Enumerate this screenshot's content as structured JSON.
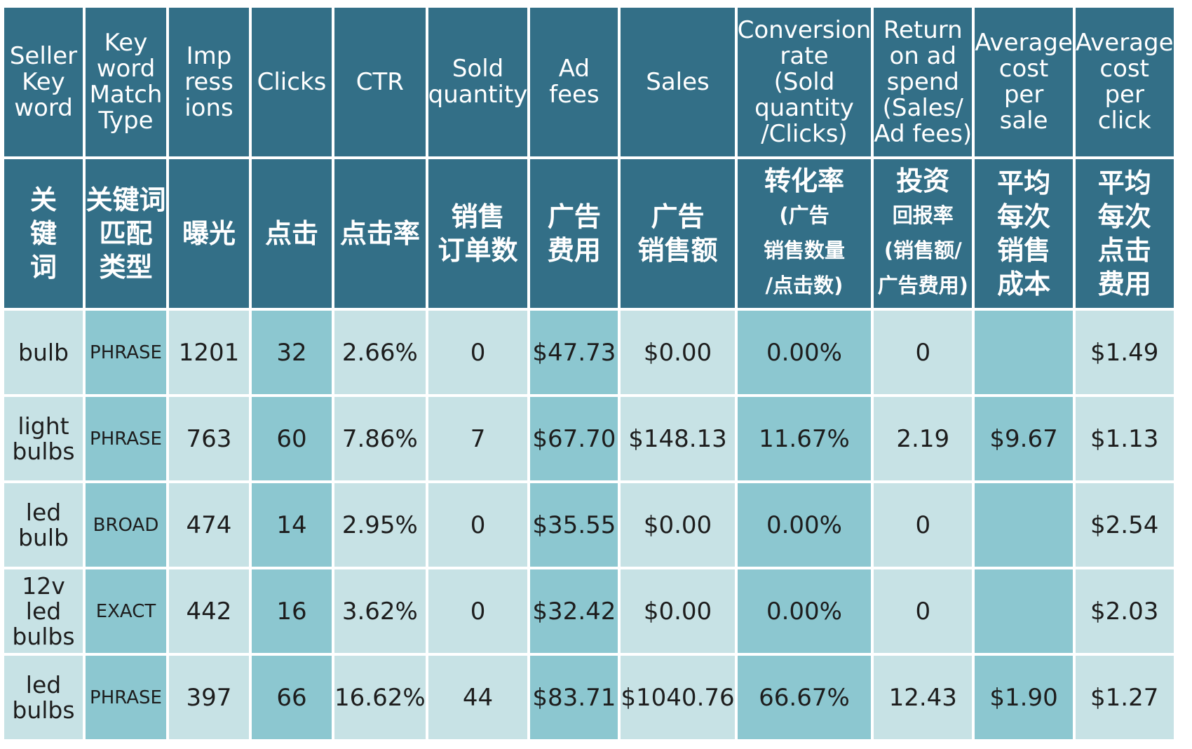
{
  "chart_data": {
    "type": "table",
    "columns": [
      {
        "key": "keyword",
        "en": "Seller\nKey\nword",
        "zh": "关\n键\n词",
        "tone": "light"
      },
      {
        "key": "match",
        "en": "Key\nword\nMatch\nType",
        "zh": "关键词\n匹配\n类型",
        "tone": "mid"
      },
      {
        "key": "impressions",
        "en": "Imp\nress\nions",
        "zh": "曝光",
        "tone": "light"
      },
      {
        "key": "clicks",
        "en": "Clicks",
        "zh": "点击",
        "tone": "mid"
      },
      {
        "key": "ctr",
        "en": "CTR",
        "zh": "点击率",
        "tone": "light"
      },
      {
        "key": "sold",
        "en": "Sold\nquantity",
        "zh": "销售\n订单数",
        "tone": "light"
      },
      {
        "key": "adfees",
        "en": "Ad fees",
        "zh": "广告\n费用",
        "tone": "mid"
      },
      {
        "key": "sales",
        "en": "Sales",
        "zh": "广告\n销售额",
        "tone": "light"
      },
      {
        "key": "conversion",
        "en": "Conversion\nrate\n(Sold\nquantity\n/Clicks)",
        "zh": "转化率\n(广告\n销售数量\n/点击数)",
        "tone": "mid"
      },
      {
        "key": "roas",
        "en": "Return\non ad\nspend\n(Sales/\nAd fees)",
        "zh": "投资\n回报率\n(销售额/\n广告费用)",
        "tone": "light"
      },
      {
        "key": "cps",
        "en": "Average\ncost\nper\nsale",
        "zh": "平均\n每次\n销售\n成本",
        "tone": "mid"
      },
      {
        "key": "cpc",
        "en": "Average\ncost\nper\nclick",
        "zh": "平均\n每次\n点击\n费用",
        "tone": "light"
      }
    ],
    "rows": [
      {
        "keyword": "bulb",
        "match": "PHRASE",
        "impressions": 1201,
        "clicks": 32,
        "ctr": "2.66%",
        "sold": 0,
        "adfees": "$47.73",
        "sales": "$0.00",
        "conversion": "0.00%",
        "roas": "0",
        "cps": "",
        "cpc": "$1.49"
      },
      {
        "keyword": "light\nbulbs",
        "match": "PHRASE",
        "impressions": 763,
        "clicks": 60,
        "ctr": "7.86%",
        "sold": 7,
        "adfees": "$67.70",
        "sales": "$148.13",
        "conversion": "11.67%",
        "roas": "2.19",
        "cps": "$9.67",
        "cpc": "$1.13"
      },
      {
        "keyword": "led\nbulb",
        "match": "BROAD",
        "impressions": 474,
        "clicks": 14,
        "ctr": "2.95%",
        "sold": 0,
        "adfees": "$35.55",
        "sales": "$0.00",
        "conversion": "0.00%",
        "roas": "0",
        "cps": "",
        "cpc": "$2.54"
      },
      {
        "keyword": "12v\nled\nbulbs",
        "match": "EXACT",
        "impressions": 442,
        "clicks": 16,
        "ctr": "3.62%",
        "sold": 0,
        "adfees": "$32.42",
        "sales": "$0.00",
        "conversion": "0.00%",
        "roas": "0",
        "cps": "",
        "cpc": "$2.03"
      },
      {
        "keyword": "led\nbulbs",
        "match": "PHRASE",
        "impressions": 397,
        "clicks": 66,
        "ctr": "16.62%",
        "sold": 44,
        "adfees": "$83.71",
        "sales": "$1040.76",
        "conversion": "66.67%",
        "roas": "12.43",
        "cps": "$1.90",
        "cpc": "$1.27"
      }
    ],
    "colors": {
      "header": "#336f87",
      "cell_light": "#c7e2e5",
      "cell_mid": "#8cc7d0",
      "header_text": "#ffffff",
      "cell_text": "#1d1d1d"
    }
  }
}
